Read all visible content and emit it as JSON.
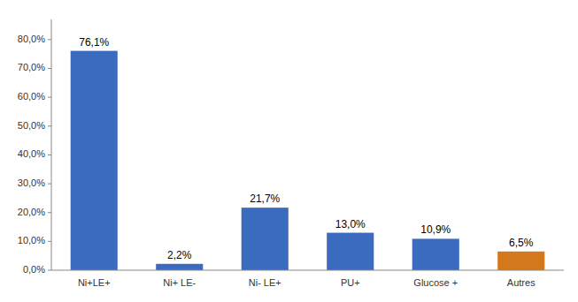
{
  "chart_data": {
    "type": "bar",
    "categories": [
      "Ni+LE+",
      "Ni+ LE-",
      "Ni- LE+",
      "PU+",
      "Glucose +",
      "Autres"
    ],
    "values": [
      76.1,
      2.2,
      21.7,
      13.0,
      10.9,
      6.5
    ],
    "value_labels": [
      "76,1%",
      "2,2%",
      "21,7%",
      "13,0%",
      "10,9%",
      "6,5%"
    ],
    "data_labels": true,
    "colors": [
      "#3A6BBF",
      "#3A6BBF",
      "#3A6BBF",
      "#3A6BBF",
      "#3A6BBF",
      "#D4781C"
    ],
    "ylim": [
      0,
      87
    ],
    "yticks": [
      {
        "value": 0,
        "label": "0,0%"
      },
      {
        "value": 10,
        "label": "10,0%"
      },
      {
        "value": 20,
        "label": "20,0%"
      },
      {
        "value": 30,
        "label": "30,0%"
      },
      {
        "value": 40,
        "label": "40,0%"
      },
      {
        "value": 50,
        "label": "50,0%"
      },
      {
        "value": 60,
        "label": "60,0%"
      },
      {
        "value": 70,
        "label": "70,0%"
      },
      {
        "value": 80,
        "label": "80,0%"
      }
    ],
    "grid": false
  }
}
